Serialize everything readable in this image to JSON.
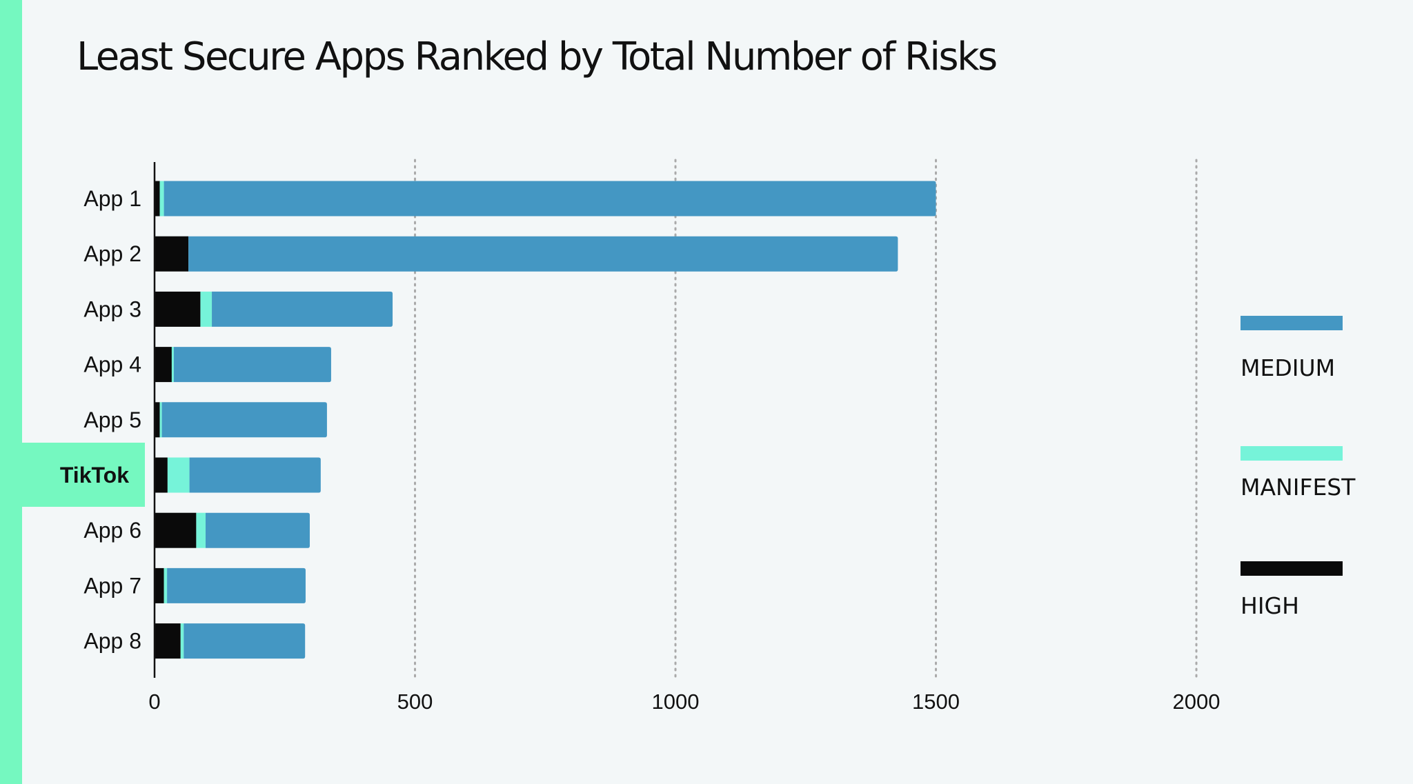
{
  "colors": {
    "background": "#f3f7f8",
    "accent": "#75f8c0",
    "medium": "#4497c3",
    "manifest": "#76f3d9",
    "high": "#0a0a0a",
    "grid": "#aaaaaa",
    "text": "#111111"
  },
  "chart_data": {
    "type": "bar",
    "orientation": "horizontal",
    "stacked": true,
    "title": "Least Secure Apps Ranked by Total Number of Risks",
    "xlabel": "",
    "ylabel": "",
    "xlim": [
      0,
      2000
    ],
    "xticks": [
      0,
      500,
      1000,
      1500,
      2000
    ],
    "grid": true,
    "legend_position": "right",
    "highlighted_category": "TikTok",
    "categories": [
      "App 1",
      "App 2",
      "App 3",
      "App 4",
      "App 5",
      "TikTok",
      "App 6",
      "App 7",
      "App 8"
    ],
    "series": [
      {
        "name": "HIGH",
        "color_key": "high",
        "values": [
          10,
          65,
          88,
          33,
          10,
          25,
          80,
          18,
          50
        ]
      },
      {
        "name": "MANIFEST",
        "color_key": "manifest",
        "values": [
          8,
          0,
          22,
          4,
          4,
          42,
          18,
          6,
          6
        ]
      },
      {
        "name": "MEDIUM",
        "color_key": "medium",
        "values": [
          1482,
          1362,
          347,
          302,
          317,
          252,
          200,
          266,
          233
        ]
      }
    ],
    "legend_order": [
      "MEDIUM",
      "MANIFEST",
      "HIGH"
    ]
  }
}
